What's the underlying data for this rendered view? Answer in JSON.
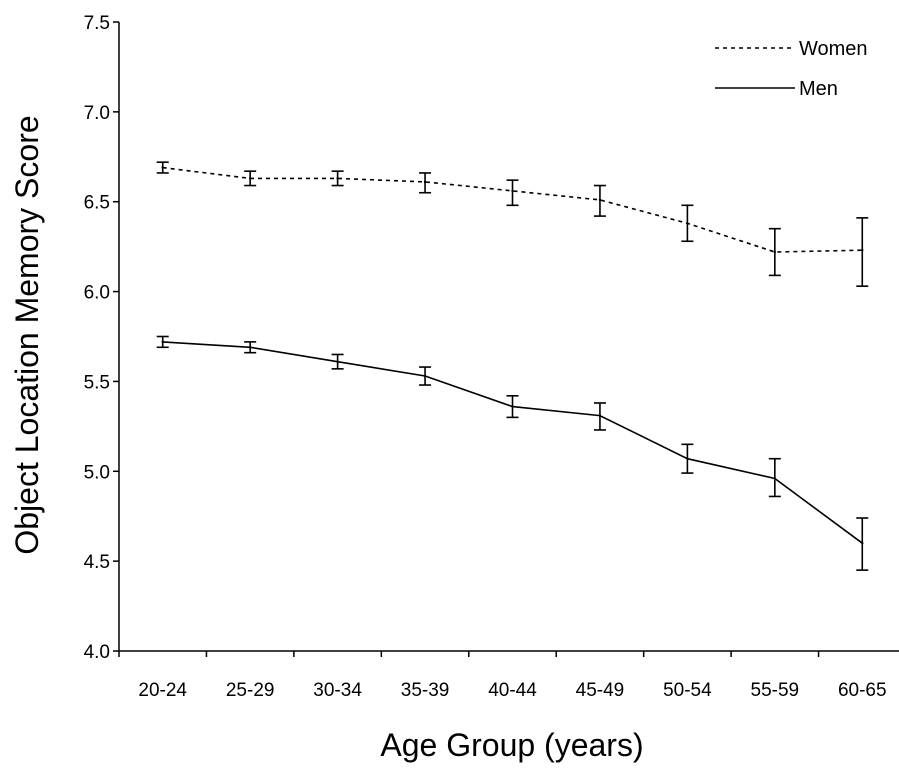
{
  "chart_data": {
    "type": "line",
    "xlabel": "Age Group (years)",
    "ylabel": "Object Location Memory Score",
    "categories": [
      "20-24",
      "25-29",
      "30-34",
      "35-39",
      "40-44",
      "45-49",
      "50-54",
      "55-59",
      "60-65"
    ],
    "ylim": [
      4.0,
      7.5
    ],
    "yticks": [
      "4.0",
      "4.5",
      "5.0",
      "5.5",
      "6.0",
      "6.5",
      "7.0",
      "7.5"
    ],
    "grid": false,
    "legend_position": "top-right",
    "series": [
      {
        "name": "Women",
        "line_style": "dotted",
        "values": [
          6.69,
          6.63,
          6.63,
          6.61,
          6.56,
          6.51,
          6.38,
          6.22,
          6.23
        ],
        "error_low": [
          6.66,
          6.59,
          6.59,
          6.55,
          6.48,
          6.42,
          6.28,
          6.09,
          6.03
        ],
        "error_high": [
          6.72,
          6.67,
          6.67,
          6.66,
          6.62,
          6.59,
          6.48,
          6.35,
          6.41
        ]
      },
      {
        "name": "Men",
        "line_style": "solid",
        "values": [
          5.72,
          5.69,
          5.61,
          5.53,
          5.36,
          5.31,
          5.07,
          4.96,
          4.6
        ],
        "error_low": [
          5.69,
          5.66,
          5.57,
          5.48,
          5.3,
          5.23,
          4.99,
          4.86,
          4.45
        ],
        "error_high": [
          5.75,
          5.72,
          5.65,
          5.58,
          5.42,
          5.38,
          5.15,
          5.07,
          4.74
        ]
      }
    ]
  }
}
